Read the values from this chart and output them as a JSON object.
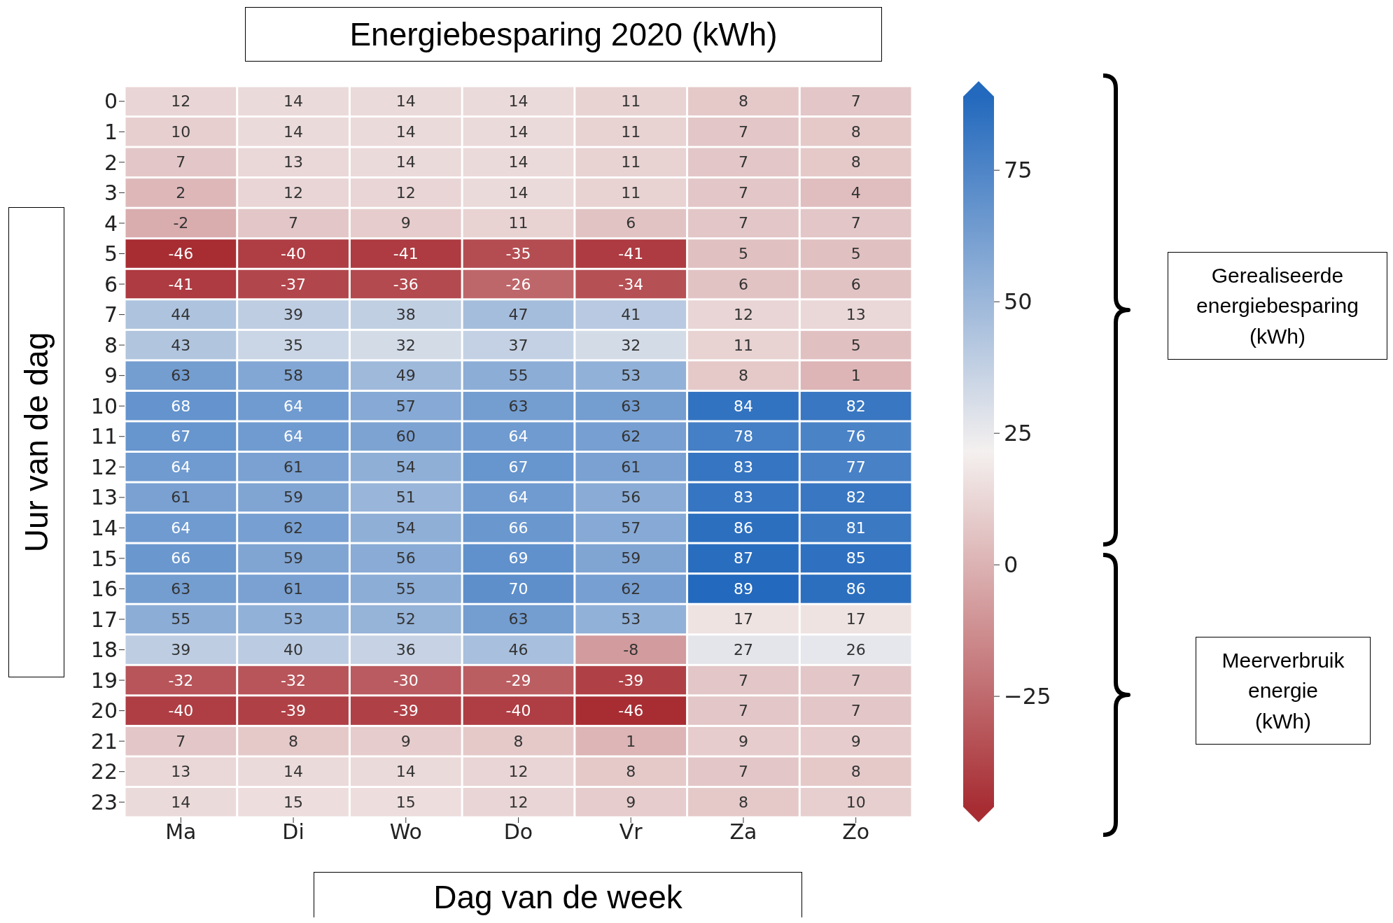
{
  "chart_data": {
    "type": "heatmap",
    "title": "Energiebesparing 2020 (kWh)",
    "xlabel": "Dag van de week",
    "ylabel": "Uur van de dag",
    "categories": [
      "Ma",
      "Di",
      "Wo",
      "Do",
      "Vr",
      "Za",
      "Zo"
    ],
    "y_categories": [
      "0",
      "1",
      "2",
      "3",
      "4",
      "5",
      "6",
      "7",
      "8",
      "9",
      "10",
      "11",
      "12",
      "13",
      "14",
      "15",
      "16",
      "17",
      "18",
      "19",
      "20",
      "21",
      "22",
      "23"
    ],
    "cells": [
      [
        12,
        14,
        14,
        14,
        11,
        8,
        7
      ],
      [
        10,
        14,
        14,
        14,
        11,
        7,
        8
      ],
      [
        7,
        13,
        14,
        14,
        11,
        7,
        8
      ],
      [
        2,
        12,
        12,
        14,
        11,
        7,
        4
      ],
      [
        -2,
        7,
        9,
        11,
        6,
        7,
        7
      ],
      [
        -46,
        -40,
        -41,
        -35,
        -41,
        5,
        5
      ],
      [
        -41,
        -37,
        -36,
        -26,
        -34,
        6,
        6
      ],
      [
        44,
        39,
        38,
        47,
        41,
        12,
        13
      ],
      [
        43,
        35,
        32,
        37,
        32,
        11,
        5
      ],
      [
        63,
        58,
        49,
        55,
        53,
        8,
        1
      ],
      [
        68,
        64,
        57,
        63,
        63,
        84,
        82
      ],
      [
        67,
        64,
        60,
        64,
        62,
        78,
        76
      ],
      [
        64,
        61,
        54,
        67,
        61,
        83,
        77
      ],
      [
        61,
        59,
        51,
        64,
        56,
        83,
        82
      ],
      [
        64,
        62,
        54,
        66,
        57,
        86,
        81
      ],
      [
        66,
        59,
        56,
        69,
        59,
        87,
        85
      ],
      [
        63,
        61,
        55,
        70,
        62,
        89,
        86
      ],
      [
        55,
        53,
        52,
        63,
        53,
        17,
        17
      ],
      [
        39,
        40,
        36,
        46,
        -8,
        27,
        26
      ],
      [
        -32,
        -32,
        -30,
        -29,
        -39,
        7,
        7
      ],
      [
        -40,
        -39,
        -39,
        -40,
        -46,
        7,
        7
      ],
      [
        7,
        8,
        9,
        8,
        1,
        9,
        9
      ],
      [
        13,
        14,
        14,
        12,
        8,
        7,
        8
      ],
      [
        14,
        15,
        15,
        12,
        9,
        8,
        10
      ]
    ],
    "data_labels": true,
    "clim": [
      -46,
      89
    ],
    "cticks": [
      {
        "value": -25,
        "label": "−25"
      },
      0,
      25,
      50,
      75
    ],
    "annotations": [
      "Gerealiseerde energiebesparing (kWh)",
      "Meerverbruik energie (kWh)"
    ]
  }
}
